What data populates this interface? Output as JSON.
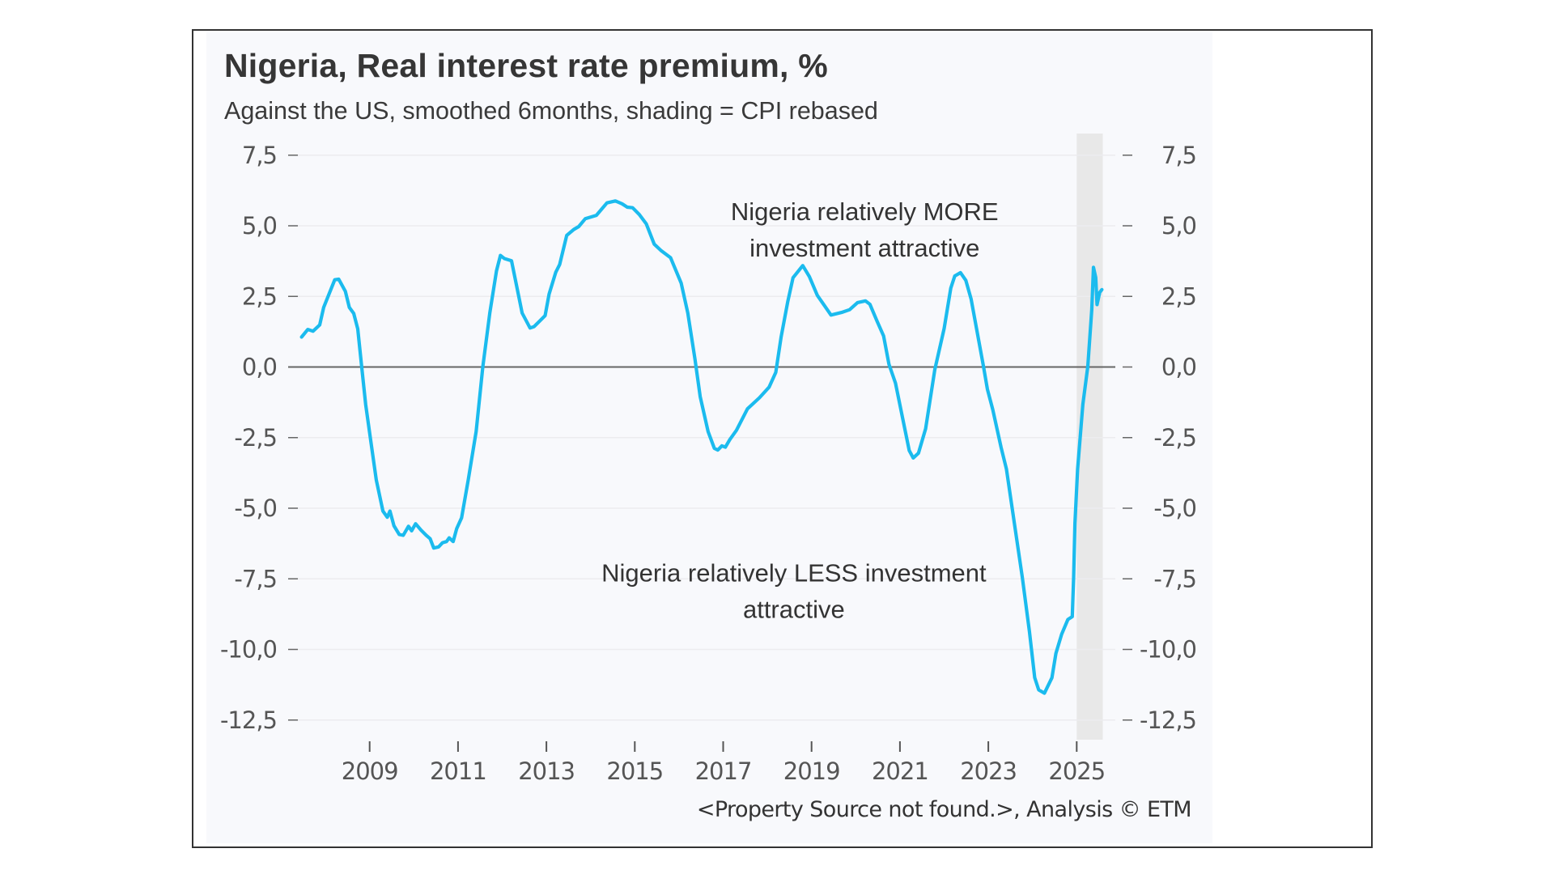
{
  "header": {
    "title": "Nigeria, Real interest rate premium, %",
    "subtitle": "Against the US, smoothed 6months, shading = CPI rebased"
  },
  "footer": {
    "source": "<Property Source not found.>, Analysis © ETM"
  },
  "colors": {
    "line": "#1bbbee",
    "shading": "#e8e8e8",
    "zero_line": "#666666",
    "grid": "#ececef",
    "panel": "#f8f9fc",
    "text": "#333333",
    "axis_text": "#555555"
  },
  "chart_data": {
    "type": "line",
    "title": "Nigeria, Real interest rate premium, %",
    "subtitle": "Against the US, smoothed 6months, shading = CPI rebased",
    "xlabel": "",
    "ylabel": "",
    "ylim": [
      -12.5,
      7.5
    ],
    "xlim": [
      2007.4,
      2025.6
    ],
    "grid": true,
    "legend": "none",
    "y_ticks": [
      7.5,
      5.0,
      2.5,
      0.0,
      -2.5,
      -5.0,
      -7.5,
      -10.0,
      -12.5
    ],
    "y_tick_labels": [
      "7,5",
      "5,0",
      "2,5",
      "0,0",
      "-2,5",
      "-5,0",
      "-7,5",
      "-10,0",
      "-12,5"
    ],
    "y_axes": [
      "left",
      "right"
    ],
    "x_ticks": [
      2009,
      2011,
      2013,
      2015,
      2017,
      2019,
      2021,
      2023,
      2025
    ],
    "x_tick_labels": [
      "2009",
      "2011",
      "2013",
      "2015",
      "2017",
      "2019",
      "2021",
      "2023",
      "2025"
    ],
    "reference_line": {
      "y": 0.0,
      "label": "zero line"
    },
    "shading": {
      "x_start": 2025.0,
      "x_end": 2025.59,
      "meaning": "CPI rebased"
    },
    "annotations": [
      {
        "lines": [
          "Nigeria relatively MORE",
          "investment attractive"
        ],
        "x": 2020.2,
        "y": 5.2
      },
      {
        "lines": [
          "Nigeria relatively LESS investment",
          "attractive"
        ],
        "x": 2018.6,
        "y": -7.6
      }
    ],
    "series": [
      {
        "name": "Real interest rate premium vs US",
        "x": [
          2007.46,
          2007.6,
          2007.72,
          2007.87,
          2007.96,
          2008.21,
          2008.3,
          2008.45,
          2008.54,
          2008.64,
          2008.73,
          2008.82,
          2008.91,
          2009.03,
          2009.15,
          2009.3,
          2009.4,
          2009.46,
          2009.55,
          2009.67,
          2009.76,
          2009.88,
          2009.95,
          2010.04,
          2010.16,
          2010.28,
          2010.37,
          2010.45,
          2010.56,
          2010.65,
          2010.74,
          2010.8,
          2010.89,
          2010.97,
          2011.08,
          2011.23,
          2011.41,
          2011.56,
          2011.72,
          2011.87,
          2011.96,
          2012.05,
          2012.21,
          2012.45,
          2012.63,
          2012.72,
          2012.85,
          2012.97,
          2013.06,
          2013.21,
          2013.3,
          2013.46,
          2013.62,
          2013.73,
          2013.88,
          2014.13,
          2014.37,
          2014.56,
          2014.71,
          2014.83,
          2014.95,
          2015.1,
          2015.26,
          2015.44,
          2015.59,
          2015.81,
          2016.05,
          2016.2,
          2016.36,
          2016.48,
          2016.66,
          2016.8,
          2016.88,
          2016.97,
          2017.05,
          2017.15,
          2017.3,
          2017.55,
          2017.82,
          2018.04,
          2018.19,
          2018.31,
          2018.46,
          2018.58,
          2018.8,
          2018.95,
          2019.13,
          2019.44,
          2019.68,
          2019.86,
          2020.04,
          2020.22,
          2020.32,
          2020.48,
          2020.63,
          2020.75,
          2020.9,
          2021.06,
          2021.21,
          2021.3,
          2021.42,
          2021.58,
          2021.79,
          2022.0,
          2022.15,
          2022.24,
          2022.37,
          2022.49,
          2022.61,
          2022.79,
          2022.89,
          2022.98,
          2023.1,
          2023.29,
          2023.41,
          2023.59,
          2023.77,
          2023.93,
          2024.05,
          2024.14,
          2024.27,
          2024.44,
          2024.53,
          2024.66,
          2024.8,
          2024.9,
          2024.93,
          2024.96,
          2025.02,
          2025.14,
          2025.25,
          2025.34,
          2025.38,
          2025.43,
          2025.46,
          2025.52,
          2025.57
        ],
        "values": [
          1.06,
          1.33,
          1.27,
          1.49,
          2.11,
          3.09,
          3.11,
          2.68,
          2.11,
          1.9,
          1.35,
          0.0,
          -1.33,
          -2.66,
          -4.0,
          -5.1,
          -5.32,
          -5.1,
          -5.62,
          -5.93,
          -5.96,
          -5.64,
          -5.8,
          -5.55,
          -5.77,
          -5.96,
          -6.08,
          -6.41,
          -6.37,
          -6.22,
          -6.18,
          -6.05,
          -6.18,
          -5.72,
          -5.34,
          -4.0,
          -2.28,
          0.0,
          1.92,
          3.4,
          3.95,
          3.84,
          3.76,
          1.91,
          1.38,
          1.43,
          1.63,
          1.82,
          2.58,
          3.35,
          3.63,
          4.66,
          4.87,
          4.97,
          5.25,
          5.37,
          5.81,
          5.88,
          5.78,
          5.66,
          5.64,
          5.4,
          5.07,
          4.35,
          4.13,
          3.87,
          2.97,
          1.91,
          0.29,
          -1.05,
          -2.29,
          -2.88,
          -2.94,
          -2.79,
          -2.84,
          -2.57,
          -2.24,
          -1.48,
          -1.09,
          -0.71,
          -0.19,
          1.05,
          2.3,
          3.16,
          3.59,
          3.2,
          2.54,
          1.84,
          1.93,
          2.03,
          2.28,
          2.34,
          2.22,
          1.63,
          1.1,
          0.1,
          -0.57,
          -1.81,
          -2.96,
          -3.22,
          -3.05,
          -2.19,
          -0.09,
          1.36,
          2.79,
          3.22,
          3.34,
          3.07,
          2.41,
          0.88,
          0.02,
          -0.79,
          -1.51,
          -2.85,
          -3.62,
          -5.54,
          -7.45,
          -9.37,
          -11.0,
          -11.43,
          -11.55,
          -11.0,
          -10.14,
          -9.46,
          -8.94,
          -8.84,
          -7.45,
          -5.54,
          -3.62,
          -1.32,
          0.02,
          2.03,
          3.53,
          3.17,
          2.21,
          2.64,
          2.74
        ]
      }
    ]
  }
}
